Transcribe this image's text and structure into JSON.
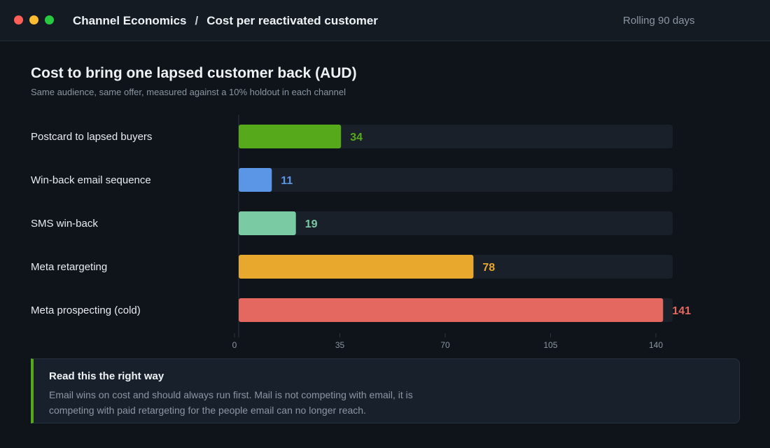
{
  "window": {
    "breadcrumb_section": "Channel Economics",
    "breadcrumb_separator": "/",
    "breadcrumb_page": "Cost per reactivated customer",
    "range_label": "Rolling 90 days"
  },
  "chart_data": {
    "type": "bar",
    "orientation": "horizontal",
    "title": "Cost to bring one lapsed customer back (AUD)",
    "subtitle": "Same audience, same offer, measured against a 10% holdout in each channel",
    "categories": [
      "Postcard to lapsed buyers",
      "Win-back email sequence",
      "SMS win-back",
      "Meta retargeting",
      "Meta prospecting (cold)"
    ],
    "values": [
      34,
      11,
      19,
      78,
      141
    ],
    "colors": [
      "#56a91b",
      "#5b96e6",
      "#7acba4",
      "#e8a82e",
      "#e4685f"
    ],
    "track_color": "#19202a",
    "xlim": [
      0,
      144
    ],
    "xticks": [
      0,
      35,
      70,
      105,
      140
    ],
    "grid": false
  },
  "callout": {
    "title": "Read this the right way",
    "body": "Email wins on cost and should always run first. Mail is not competing with email, it is competing with paid retargeting for the people email can no longer reach.",
    "accent": "#56a91b"
  }
}
